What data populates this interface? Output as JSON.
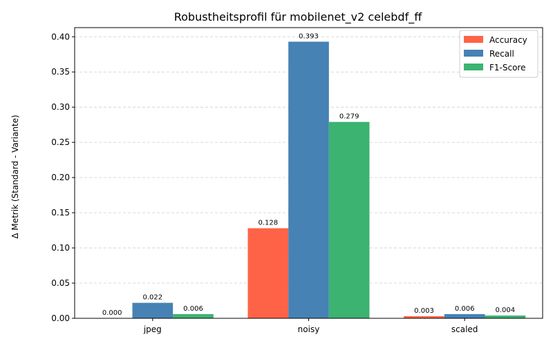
{
  "chart_data": {
    "type": "bar",
    "title": "Robustheitsprofil für mobilenet_v2 celebdf_ff",
    "xlabel": "",
    "ylabel": "Δ Metrik (Standard - Variante)",
    "categories": [
      "jpeg",
      "noisy",
      "scaled"
    ],
    "series": [
      {
        "name": "Accuracy",
        "color": "#FF6347",
        "values": [
          0.0,
          0.128,
          0.003
        ],
        "labels": [
          "0.000",
          "0.128",
          "0.003"
        ]
      },
      {
        "name": "Recall",
        "color": "#4682B4",
        "values": [
          0.022,
          0.393,
          0.006
        ],
        "labels": [
          "0.022",
          "0.393",
          "0.006"
        ]
      },
      {
        "name": "F1-Score",
        "color": "#3CB371",
        "values": [
          0.006,
          0.279,
          0.004
        ],
        "labels": [
          "0.006",
          "0.279",
          "0.004"
        ]
      }
    ],
    "ylim": [
      0,
      0.413
    ],
    "yticks": [
      "0.00",
      "0.05",
      "0.10",
      "0.15",
      "0.20",
      "0.25",
      "0.30",
      "0.35",
      "0.40"
    ],
    "grid": "y-dashed",
    "legend_position": "top-right"
  }
}
